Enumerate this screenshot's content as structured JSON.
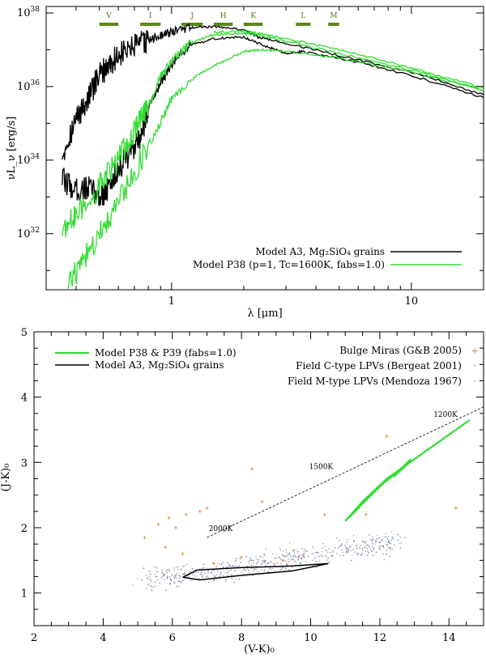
{
  "colors": {
    "black_model": "#000000",
    "green_model": "#33dd33",
    "band_bar": "#5a8a16",
    "scatter_blue": "#5b6fb0",
    "scatter_gray": "#9a9a9a",
    "scatter_red": "#d04040",
    "scatter_orange": "#d08030"
  },
  "chart_data": [
    {
      "type": "line",
      "xscale": "log",
      "yscale": "log",
      "xlabel": "λ [μm]",
      "ylabel": "νL_ν [erg/s]",
      "xlim": [
        0.3,
        20
      ],
      "ylim": [
        3e+30,
        1.5e+38
      ],
      "xticks": [
        {
          "v": 1,
          "label": "1"
        },
        {
          "v": 10,
          "label": "10"
        }
      ],
      "yticks": [
        {
          "v": 1e+32,
          "base": "10",
          "exp": "32"
        },
        {
          "v": 1e+34,
          "base": "10",
          "exp": "34"
        },
        {
          "v": 1e+36,
          "base": "10",
          "exp": "36"
        },
        {
          "v": 1e+38,
          "base": "10",
          "exp": "38"
        }
      ],
      "bands": [
        {
          "name": "V",
          "from": 0.5,
          "to": 0.6
        },
        {
          "name": "I",
          "from": 0.74,
          "to": 0.9
        },
        {
          "name": "J",
          "from": 1.1,
          "to": 1.35
        },
        {
          "name": "H",
          "from": 1.5,
          "to": 1.8
        },
        {
          "name": "K",
          "from": 2.0,
          "to": 2.4
        },
        {
          "name": "L",
          "from": 3.3,
          "to": 3.8
        },
        {
          "name": "M",
          "from": 4.5,
          "to": 5.0
        }
      ],
      "legend": [
        {
          "label": "Model A3, Mg₂SiO₄ grains",
          "series": "black"
        },
        {
          "label": "Model P38 (p=1, Tc=1600K, fabs=1.0)",
          "series": "green"
        }
      ],
      "series": [
        {
          "name": "Model A3 max phase",
          "color": "black",
          "x": [
            0.35,
            0.4,
            0.45,
            0.5,
            0.55,
            0.6,
            0.7,
            0.8,
            0.9,
            1.0,
            1.2,
            1.5,
            2.0,
            2.3,
            3.0,
            5.0,
            10.0,
            20.0
          ],
          "y": [
            1.5e+34,
            1.3e+35,
            5e+35,
            2e+36,
            4e+36,
            7e+36,
            1.2e+37,
            1.8e+37,
            2.4e+37,
            3e+37,
            4e+37,
            4.3e+37,
            3.5e+37,
            2.2e+37,
            1.5e+37,
            7e+36,
            2.5e+36,
            6e+35
          ]
        },
        {
          "name": "Model A3 min phase",
          "color": "black",
          "x": [
            0.35,
            0.4,
            0.45,
            0.5,
            0.55,
            0.6,
            0.7,
            0.75,
            0.8,
            0.9,
            1.0,
            1.2,
            1.5,
            2.0,
            2.5,
            3.0,
            3.5,
            5.0,
            10.0,
            20.0
          ],
          "y": [
            3e+33,
            1.5e+33,
            1.8e+33,
            1e+33,
            1.8e+33,
            6e+33,
            2e+34,
            5e+34,
            3e+35,
            1.2e+36,
            4e+36,
            1.3e+37,
            2e+37,
            2.2e+37,
            1.2e+37,
            8e+36,
            9e+36,
            6e+36,
            2e+36,
            5e+35
          ]
        },
        {
          "name": "Model P38 max phase",
          "color": "green",
          "x": [
            0.35,
            0.4,
            0.5,
            0.6,
            0.7,
            0.8,
            0.9,
            1.0,
            1.2,
            1.5,
            2.0,
            2.3,
            3.0,
            5.0,
            10.0,
            20.0
          ],
          "y": [
            1.2e+32,
            3e+32,
            2e+33,
            1e+34,
            6e+34,
            3e+35,
            1.8e+36,
            5e+36,
            1.5e+37,
            2.6e+37,
            2.8e+37,
            2.5e+37,
            1.7e+37,
            8e+36,
            2.8e+36,
            8e+35
          ]
        },
        {
          "name": "Model P38 upper",
          "color": "green",
          "x": [
            1.5,
            2.0,
            2.3,
            3.0,
            5.0,
            10.0,
            20.0
          ],
          "y": [
            3e+37,
            3.2e+37,
            2.8e+37,
            2e+37,
            1e+37,
            3.2e+36,
            9e+35
          ]
        },
        {
          "name": "Model P38 min phase",
          "color": "green",
          "x": [
            0.37,
            0.45,
            0.55,
            0.7,
            0.9,
            1.0,
            1.3,
            1.6,
            2.0,
            2.3,
            3.0,
            5.0,
            10.0,
            20.0
          ],
          "y": [
            4e+30,
            3e+31,
            3e+32,
            5e+33,
            1e+35,
            5e+35,
            2.2e+36,
            4.5e+36,
            9e+36,
            1e+37,
            9e+36,
            6e+36,
            2.5e+36,
            8e+35
          ]
        }
      ]
    },
    {
      "type": "scatter",
      "xlabel": "(V-K)₀",
      "ylabel": "(J-K)₀",
      "xlim": [
        2,
        15
      ],
      "ylim": [
        0.5,
        5
      ],
      "xticks": [
        2,
        4,
        6,
        8,
        10,
        12,
        14
      ],
      "yticks": [
        1,
        2,
        3,
        4,
        5
      ],
      "legend_left": [
        {
          "label": "Model P38 & P39 (fabs=1.0)",
          "series": "green"
        },
        {
          "label": "Model A3, Mg₂SiO₄ grains",
          "series": "black"
        }
      ],
      "legend_right": [
        {
          "label": "Bulge Miras (G&B 2005)",
          "marker": "+"
        },
        {
          "label": "Field C-type LPVs (Bergeat 2001)",
          "marker": "·"
        },
        {
          "label": "Field M-type LPVs (Mendoza 1967)",
          "marker": "·"
        }
      ],
      "blackbody_line": {
        "points": [
          {
            "x": 7.0,
            "y": 1.85
          },
          {
            "x": 15.0,
            "y": 3.85
          }
        ],
        "labels": [
          {
            "label": "2000K",
            "x": 7.4,
            "y": 1.95
          },
          {
            "label": "1500K",
            "x": 10.3,
            "y": 2.9
          },
          {
            "label": "1200K",
            "x": 13.9,
            "y": 3.7
          }
        ]
      },
      "series": [
        {
          "name": "Model A3 loop",
          "color": "black",
          "x": [
            6.3,
            6.7,
            8.0,
            9.3,
            10.5,
            9.5,
            8.0,
            6.8,
            6.3
          ],
          "y": [
            1.24,
            1.35,
            1.39,
            1.41,
            1.45,
            1.34,
            1.27,
            1.2,
            1.24
          ]
        },
        {
          "name": "Model P38 track",
          "color": "green",
          "x": [
            11.0,
            11.5,
            12.2,
            13.0,
            13.8,
            14.6
          ],
          "y": [
            2.1,
            2.4,
            2.75,
            3.05,
            3.35,
            3.65
          ]
        },
        {
          "name": "Model P39 track",
          "color": "green",
          "x": [
            11.1,
            11.6,
            12.1,
            12.5,
            12.9
          ],
          "y": [
            2.15,
            2.42,
            2.68,
            2.85,
            3.05
          ]
        },
        {
          "name": "Model P38 short branch",
          "color": "green",
          "x": [
            12.4,
            12.9
          ],
          "y": [
            2.78,
            3.02
          ]
        }
      ],
      "bulge_miras": [
        [
          5.2,
          1.85
        ],
        [
          5.6,
          2.05
        ],
        [
          5.9,
          2.15
        ],
        [
          6.1,
          2.0
        ],
        [
          6.4,
          2.2
        ],
        [
          6.8,
          2.25
        ],
        [
          7.0,
          2.3
        ],
        [
          5.8,
          1.7
        ],
        [
          6.3,
          1.6
        ],
        [
          8.3,
          2.9
        ],
        [
          8.6,
          2.4
        ],
        [
          7.5,
          1.95
        ],
        [
          9.2,
          1.5
        ],
        [
          10.4,
          2.2
        ],
        [
          11.6,
          2.2
        ],
        [
          12.2,
          3.4
        ],
        [
          14.2,
          2.3
        ],
        [
          7.2,
          1.45
        ],
        [
          8.0,
          1.55
        ],
        [
          9.5,
          1.65
        ]
      ],
      "scatter_cloud": {
        "count": 520,
        "seed": 7
      }
    }
  ]
}
